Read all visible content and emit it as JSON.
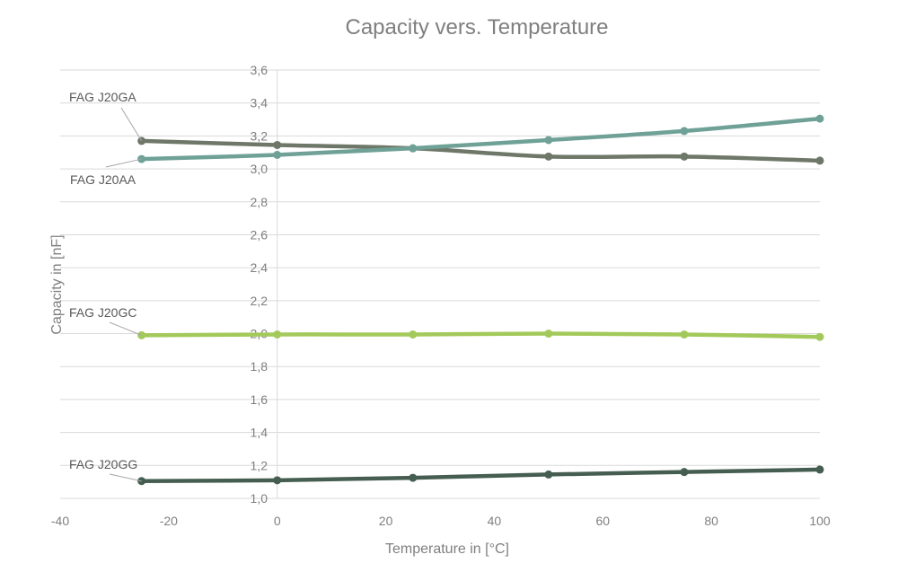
{
  "chart_data": {
    "type": "line",
    "title": "Capacity vers. Temperature",
    "xlabel": "Temperature in [°C]",
    "ylabel": "Capacity in [nF]",
    "xlim": [
      -40,
      100
    ],
    "ylim": [
      1.0,
      3.6
    ],
    "x_ticks": [
      "-40",
      "-20",
      "0",
      "20",
      "40",
      "60",
      "80",
      "100"
    ],
    "y_ticks": [
      "1,0",
      "1,2",
      "1,4",
      "1,6",
      "1,8",
      "2,0",
      "2,2",
      "2,4",
      "2,6",
      "2,8",
      "3,0",
      "3,2",
      "3,4",
      "3,6"
    ],
    "grid": true,
    "legend": "none",
    "x": [
      -25,
      0,
      25,
      50,
      75,
      100
    ],
    "series": [
      {
        "name": "FAG J20GA",
        "color": "#6e7768",
        "values": [
          3.17,
          3.145,
          3.125,
          3.075,
          3.075,
          3.05
        ]
      },
      {
        "name": "FAG J20AA",
        "color": "#6fa197",
        "values": [
          3.06,
          3.085,
          3.125,
          3.175,
          3.23,
          3.305
        ]
      },
      {
        "name": "FAG J20GC",
        "color": "#a3c95a",
        "values": [
          1.99,
          1.995,
          1.995,
          2.0,
          1.995,
          1.98
        ]
      },
      {
        "name": "FAG J20GG",
        "color": "#465e51",
        "values": [
          1.105,
          1.11,
          1.125,
          1.145,
          1.16,
          1.175
        ]
      }
    ]
  }
}
